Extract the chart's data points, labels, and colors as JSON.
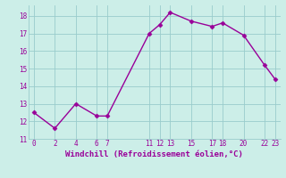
{
  "x": [
    0,
    2,
    4,
    6,
    7,
    11,
    12,
    13,
    15,
    17,
    18,
    20,
    22,
    23
  ],
  "y": [
    12.5,
    11.6,
    13.0,
    12.3,
    12.3,
    17.0,
    17.5,
    18.2,
    17.7,
    17.4,
    17.6,
    16.9,
    15.2,
    14.4
  ],
  "xlim": [
    -0.5,
    23.5
  ],
  "ylim": [
    11,
    18.6
  ],
  "xticks": [
    0,
    2,
    4,
    6,
    7,
    11,
    12,
    13,
    15,
    17,
    18,
    20,
    22,
    23
  ],
  "yticks": [
    11,
    12,
    13,
    14,
    15,
    16,
    17,
    18
  ],
  "xlabel": "Windchill (Refroidissement éolien,°C)",
  "line_color": "#990099",
  "marker_color": "#990099",
  "bg_color": "#cceee8",
  "grid_color": "#99cccc",
  "tick_color": "#990099",
  "label_color": "#990099",
  "font_family": "monospace",
  "tick_fontsize": 5.5,
  "label_fontsize": 6.5
}
